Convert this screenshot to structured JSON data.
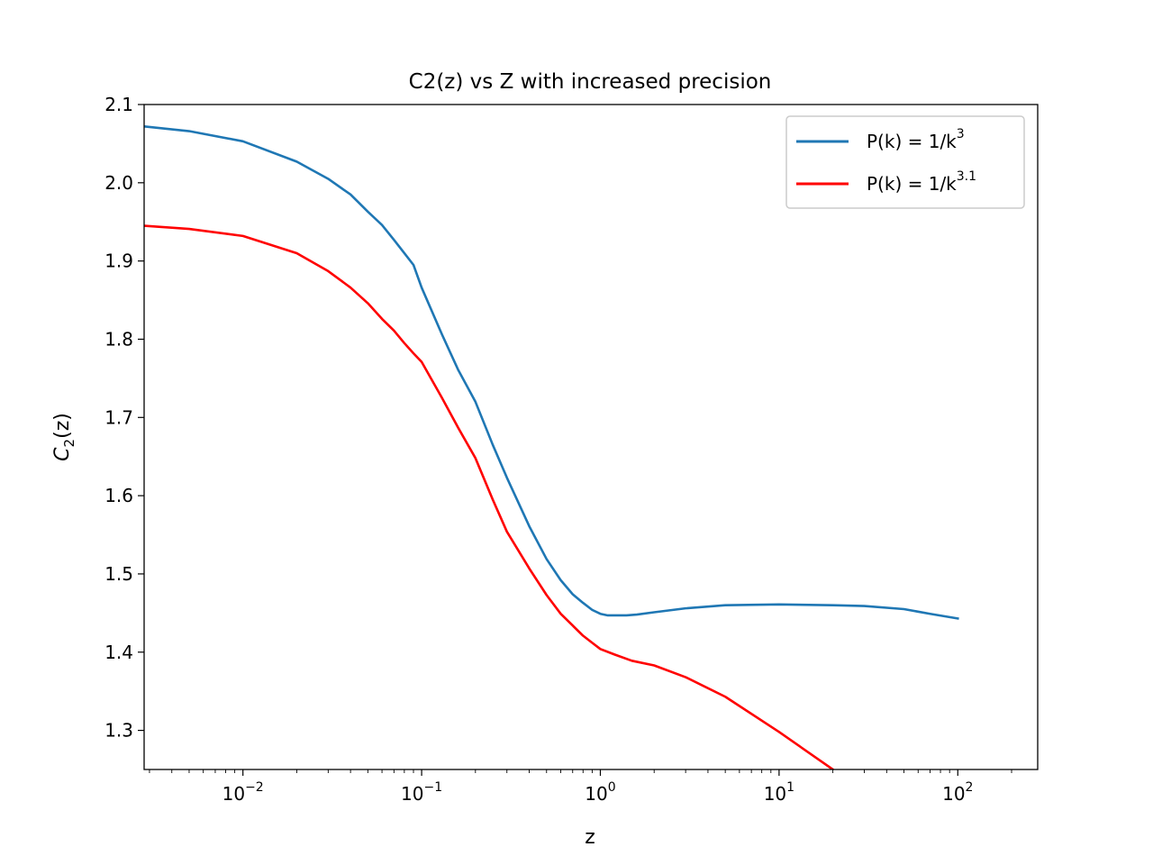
{
  "chart_data": {
    "type": "line",
    "title": "C2(z) vs Z with increased precision",
    "xlabel": "z",
    "ylabel": {
      "base": "C",
      "sub": "2",
      "rest": "(z)"
    },
    "xscale": "log",
    "xlim": [
      0.0028,
      280
    ],
    "ylim": [
      1.25,
      2.1
    ],
    "x_ticks": [
      {
        "value": 0.01,
        "base": "10",
        "exp": "−2"
      },
      {
        "value": 0.1,
        "base": "10",
        "exp": "−1"
      },
      {
        "value": 1,
        "base": "10",
        "exp": "0"
      },
      {
        "value": 10,
        "base": "10",
        "exp": "1"
      },
      {
        "value": 100,
        "base": "10",
        "exp": "2"
      }
    ],
    "y_ticks": [
      "1.3",
      "1.4",
      "1.5",
      "1.6",
      "1.7",
      "1.8",
      "1.9",
      "2.0",
      "2.1"
    ],
    "grid": false,
    "legend_position": "top-right",
    "series": [
      {
        "name": "P(k) = 1/k^3",
        "legend": {
          "main": "P(k) = 1/k",
          "sup": "3"
        },
        "color": "#1f77b4",
        "x": [
          0.0028,
          0.005,
          0.01,
          0.02,
          0.03,
          0.04,
          0.05,
          0.06,
          0.07,
          0.08,
          0.09,
          0.1,
          0.13,
          0.16,
          0.2,
          0.25,
          0.3,
          0.4,
          0.5,
          0.6,
          0.7,
          0.8,
          0.9,
          1.0,
          1.1,
          1.2,
          1.4,
          1.6,
          2.0,
          3.0,
          5.0,
          10,
          20,
          30,
          50,
          70,
          100
        ],
        "y": [
          2.072,
          2.066,
          2.053,
          2.027,
          2.005,
          1.985,
          1.963,
          1.946,
          1.927,
          1.91,
          1.895,
          1.866,
          1.806,
          1.761,
          1.72,
          1.665,
          1.623,
          1.561,
          1.519,
          1.492,
          1.474,
          1.463,
          1.454,
          1.449,
          1.447,
          1.447,
          1.447,
          1.448,
          1.451,
          1.456,
          1.46,
          1.461,
          1.46,
          1.459,
          1.455,
          1.449,
          1.443
        ]
      },
      {
        "name": "P(k) = 1/k^3.1",
        "legend": {
          "main": "P(k) = 1/k",
          "sup": "3.1"
        },
        "color": "#ff0000",
        "x": [
          0.0028,
          0.005,
          0.01,
          0.02,
          0.03,
          0.04,
          0.05,
          0.06,
          0.07,
          0.08,
          0.09,
          0.1,
          0.13,
          0.16,
          0.2,
          0.25,
          0.3,
          0.4,
          0.5,
          0.6,
          0.7,
          0.8,
          0.9,
          1.0,
          1.2,
          1.5,
          2.0,
          3.0,
          5.0,
          10,
          20
        ],
        "y": [
          1.945,
          1.941,
          1.932,
          1.91,
          1.887,
          1.866,
          1.846,
          1.826,
          1.811,
          1.795,
          1.782,
          1.771,
          1.725,
          1.687,
          1.648,
          1.595,
          1.554,
          1.507,
          1.473,
          1.449,
          1.434,
          1.421,
          1.412,
          1.404,
          1.397,
          1.389,
          1.383,
          1.368,
          1.343,
          1.298,
          1.25
        ]
      }
    ]
  }
}
